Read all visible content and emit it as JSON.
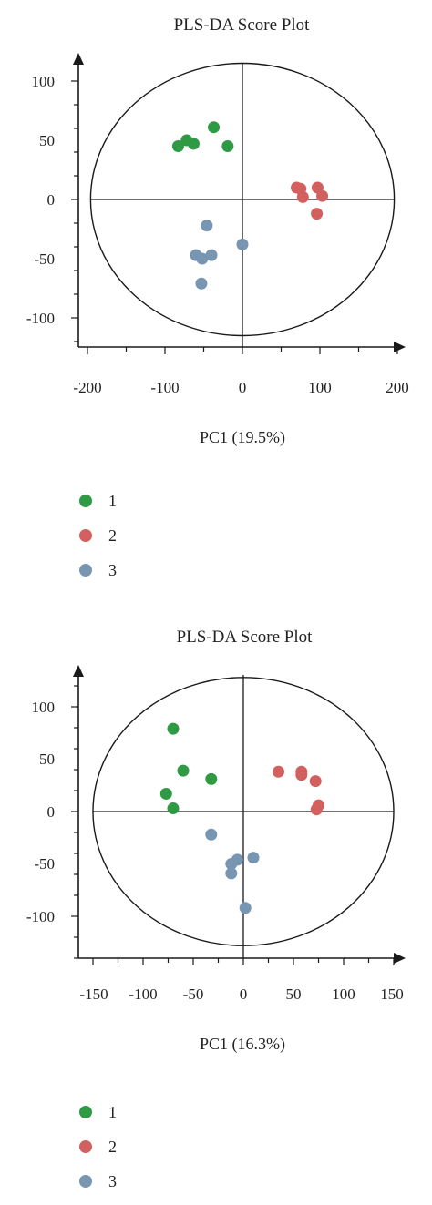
{
  "colors": {
    "1": "#2e9a44",
    "2": "#d2605e",
    "3": "#7895b2",
    "axis": "#1a1a1a"
  },
  "chart_data": [
    {
      "type": "scatter",
      "title": "PLS-DA Score Plot",
      "xlabel": "PC1 (19.5%)",
      "ylabel": "",
      "xlim": [
        -200,
        200
      ],
      "ylim": [
        -120,
        120
      ],
      "xticks": [
        "-200",
        "-100",
        "0",
        "100",
        "200"
      ],
      "yticks": [
        "100",
        "50",
        "0",
        "-50",
        "-100"
      ],
      "ellipse": {
        "rx": 196,
        "ry": 115
      },
      "grid": false,
      "legend_position": "bottom-left",
      "series": [
        {
          "name": "1",
          "points": [
            [
              -83,
              45
            ],
            [
              -72,
              50
            ],
            [
              -63,
              47
            ],
            [
              -37,
              61
            ],
            [
              -19,
              45
            ]
          ]
        },
        {
          "name": "2",
          "points": [
            [
              70,
              10
            ],
            [
              75,
              9
            ],
            [
              78,
              2
            ],
            [
              97,
              10
            ],
            [
              96,
              -12
            ],
            [
              103,
              3
            ]
          ]
        },
        {
          "name": "3",
          "points": [
            [
              -46,
              -22
            ],
            [
              -60,
              -47
            ],
            [
              -52,
              -50
            ],
            [
              -40,
              -47
            ],
            [
              -53,
              -71
            ],
            [
              0,
              -38
            ]
          ]
        }
      ]
    },
    {
      "type": "scatter",
      "title": "PLS-DA Score Plot",
      "xlabel": "PC1 (16.3%)",
      "ylabel": "",
      "xlim": [
        -150,
        150
      ],
      "ylim": [
        -140,
        130
      ],
      "xticks": [
        "-150",
        "-100",
        "-50",
        "0",
        "50",
        "100",
        "150"
      ],
      "yticks": [
        "100",
        "50",
        "0",
        "-50",
        "-100"
      ],
      "ellipse": {
        "rx": 150,
        "ry": 128
      },
      "grid": false,
      "legend_position": "bottom-left",
      "series": [
        {
          "name": "1",
          "points": [
            [
              -70,
              79
            ],
            [
              -60,
              39
            ],
            [
              -32,
              31
            ],
            [
              -77,
              17
            ],
            [
              -70,
              3
            ]
          ]
        },
        {
          "name": "2",
          "points": [
            [
              35,
              38
            ],
            [
              58,
              38
            ],
            [
              58,
              35
            ],
            [
              72,
              29
            ],
            [
              75,
              6
            ],
            [
              73,
              2
            ]
          ]
        },
        {
          "name": "3",
          "points": [
            [
              -32,
              -22
            ],
            [
              -12,
              -50
            ],
            [
              -6,
              -46
            ],
            [
              10,
              -44
            ],
            [
              -12,
              -59
            ],
            [
              2,
              -92
            ]
          ]
        }
      ]
    }
  ]
}
